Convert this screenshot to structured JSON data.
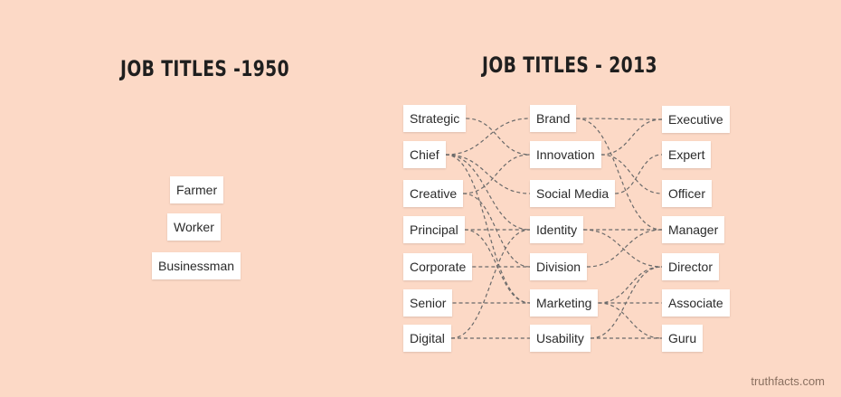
{
  "titles": {
    "left": "JOB TITLES -1950",
    "right": "JOB TITLES - 2013"
  },
  "jobs_1950": [
    "Farmer",
    "Worker",
    "Businessman"
  ],
  "jobs_2013": {
    "column1": [
      "Strategic",
      "Chief",
      "Creative",
      "Principal",
      "Corporate",
      "Senior",
      "Digital"
    ],
    "column2": [
      "Brand",
      "Innovation",
      "Social Media",
      "Identity",
      "Division",
      "Marketing",
      "Usability"
    ],
    "column3": [
      "Executive",
      "Expert",
      "Officer",
      "Manager",
      "Director",
      "Associate",
      "Guru"
    ]
  },
  "connections": [
    [
      "Strategic",
      "Innovation"
    ],
    [
      "Chief",
      "Brand"
    ],
    [
      "Chief",
      "Social Media"
    ],
    [
      "Chief",
      "Identity"
    ],
    [
      "Chief",
      "Marketing"
    ],
    [
      "Creative",
      "Innovation"
    ],
    [
      "Creative",
      "Division"
    ],
    [
      "Principal",
      "Identity"
    ],
    [
      "Principal",
      "Marketing"
    ],
    [
      "Corporate",
      "Division"
    ],
    [
      "Senior",
      "Marketing"
    ],
    [
      "Digital",
      "Usability"
    ],
    [
      "Digital",
      "Identity"
    ],
    [
      "Brand",
      "Executive"
    ],
    [
      "Brand",
      "Manager"
    ],
    [
      "Innovation",
      "Executive"
    ],
    [
      "Innovation",
      "Officer"
    ],
    [
      "Social Media",
      "Expert"
    ],
    [
      "Identity",
      "Manager"
    ],
    [
      "Identity",
      "Director"
    ],
    [
      "Division",
      "Manager"
    ],
    [
      "Marketing",
      "Director"
    ],
    [
      "Marketing",
      "Associate"
    ],
    [
      "Marketing",
      "Guru"
    ],
    [
      "Usability",
      "Director"
    ],
    [
      "Usability",
      "Guru"
    ]
  ],
  "credit": "truthfacts.com"
}
